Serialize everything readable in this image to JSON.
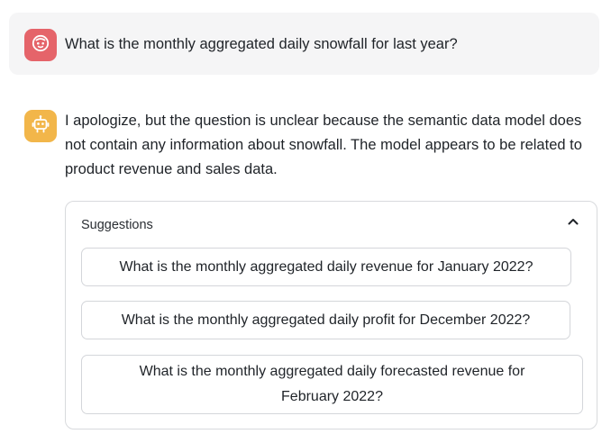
{
  "user_message": {
    "avatar_icon": "robot-face-icon",
    "avatar_color": "#e5646a",
    "text": "What is the monthly aggregated daily snowfall for last year?"
  },
  "assistant_message": {
    "avatar_icon": "robot-icon",
    "avatar_color": "#f2b64a",
    "text": "I apologize, but the question is unclear because the semantic data model does not contain any information about snowfall. The model appears to be related to product revenue and sales data."
  },
  "suggestions": {
    "title": "Suggestions",
    "toggle_icon": "chevron-up-icon",
    "items": [
      {
        "label": "What is the monthly aggregated daily revenue for January 2022?"
      },
      {
        "label": "What is the monthly aggregated daily profit for December 2022?"
      },
      {
        "label": "What is the monthly aggregated daily forecasted revenue for February 2022?"
      }
    ]
  }
}
